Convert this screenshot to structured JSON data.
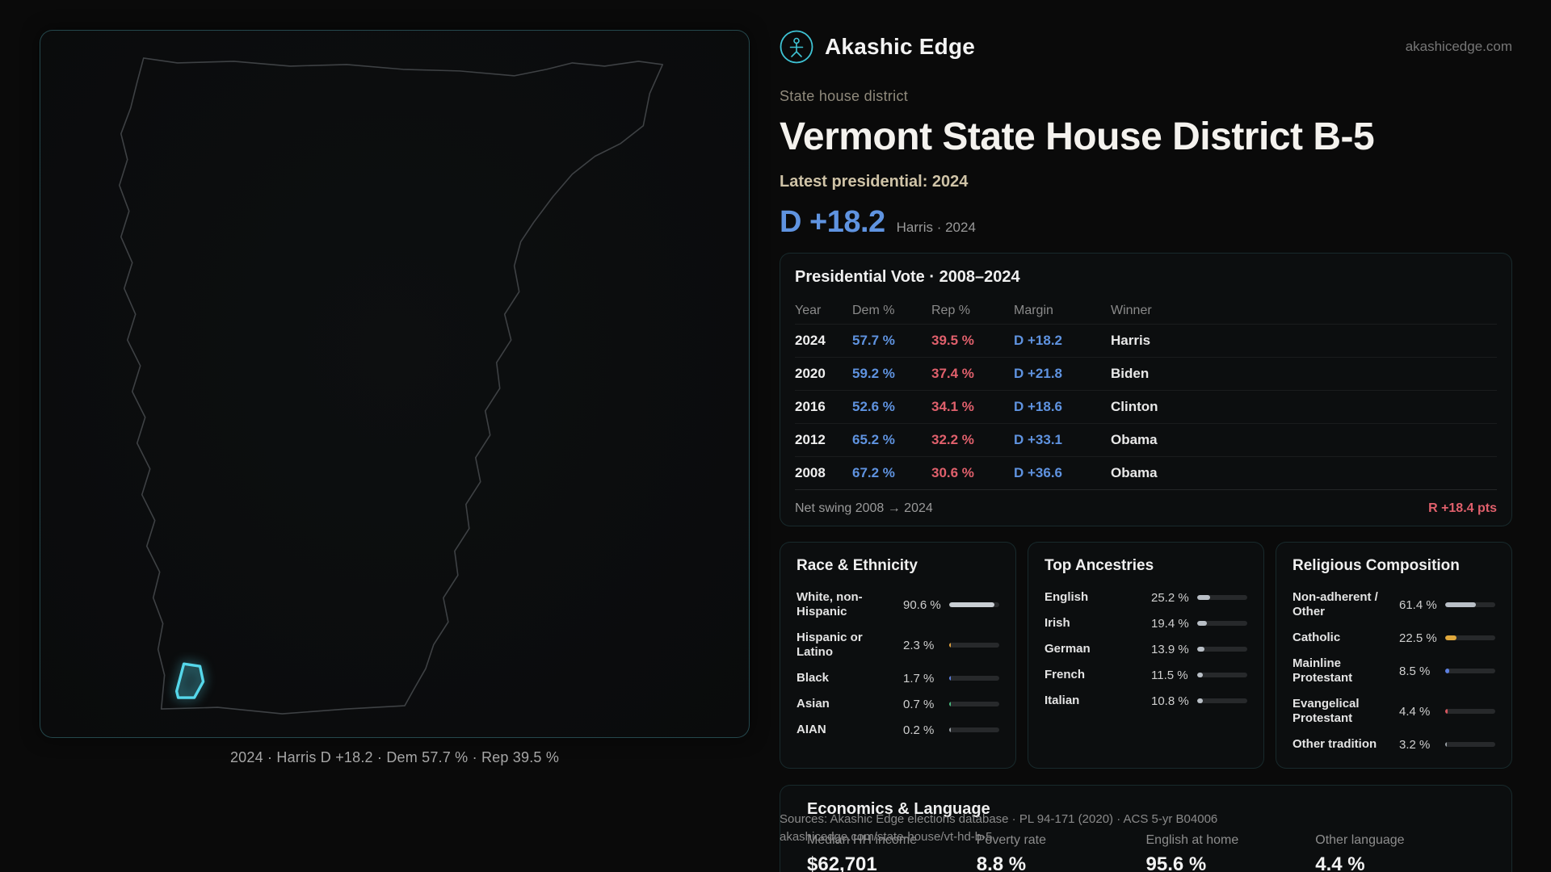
{
  "theme": {
    "dem_blue": "#5f93e0",
    "rep_red": "#e0606c",
    "accent_teal": "#55d7ea"
  },
  "brand": {
    "name": "Akashic Edge",
    "domain": "akashicedge.com"
  },
  "header": {
    "kicker": "State house district",
    "title": "Vermont State House District B-5",
    "latest_label": "Latest presidential: 2024",
    "margin_value": "D +18.2",
    "margin_context": "Harris · 2024"
  },
  "map": {
    "caption": "2024 · Harris D +18.2 · Dem 57.7 % · Rep 39.5 %"
  },
  "presidential": {
    "title": "Presidential Vote · 2008–2024",
    "columns": [
      "Year",
      "Dem %",
      "Rep %",
      "Margin",
      "Winner"
    ],
    "rows": [
      {
        "year": "2024",
        "dem": "57.7 %",
        "rep": "39.5 %",
        "margin": "D +18.2",
        "winner": "Harris"
      },
      {
        "year": "2020",
        "dem": "59.2 %",
        "rep": "37.4 %",
        "margin": "D +21.8",
        "winner": "Biden"
      },
      {
        "year": "2016",
        "dem": "52.6 %",
        "rep": "34.1 %",
        "margin": "D +18.6",
        "winner": "Clinton"
      },
      {
        "year": "2012",
        "dem": "65.2 %",
        "rep": "32.2 %",
        "margin": "D +33.1",
        "winner": "Obama"
      },
      {
        "year": "2008",
        "dem": "67.2 %",
        "rep": "30.6 %",
        "margin": "D +36.6",
        "winner": "Obama"
      }
    ],
    "net_swing_label": "Net swing 2008 → 2024",
    "net_swing_value": "R +18.4 pts"
  },
  "race": {
    "title": "Race & Ethnicity",
    "rows": [
      {
        "label": "White, non-Hispanic",
        "value": "90.6 %",
        "pct": 90.6,
        "color": "#c9ced3"
      },
      {
        "label": "Hispanic or Latino",
        "value": "2.3 %",
        "pct": 2.3,
        "color": "#e3a23c"
      },
      {
        "label": "Black",
        "value": "1.7 %",
        "pct": 1.7,
        "color": "#5c7fe0"
      },
      {
        "label": "Asian",
        "value": "0.7 %",
        "pct": 0.7,
        "color": "#46bd7e"
      },
      {
        "label": "AIAN",
        "value": "0.2 %",
        "pct": 0.2,
        "color": "#9aa0a6"
      }
    ]
  },
  "ancestries": {
    "title": "Top Ancestries",
    "rows": [
      {
        "label": "English",
        "value": "25.2 %",
        "pct": 25.2,
        "color": "#b9bfc6"
      },
      {
        "label": "Irish",
        "value": "19.4 %",
        "pct": 19.4,
        "color": "#b9bfc6"
      },
      {
        "label": "German",
        "value": "13.9 %",
        "pct": 13.9,
        "color": "#b9bfc6"
      },
      {
        "label": "French",
        "value": "11.5 %",
        "pct": 11.5,
        "color": "#b9bfc6"
      },
      {
        "label": "Italian",
        "value": "10.8 %",
        "pct": 10.8,
        "color": "#b9bfc6"
      }
    ]
  },
  "religion": {
    "title": "Religious Composition",
    "rows": [
      {
        "label": "Non-adherent / Other",
        "value": "61.4 %",
        "pct": 61.4,
        "color": "#b9bfc6"
      },
      {
        "label": "Catholic",
        "value": "22.5 %",
        "pct": 22.5,
        "color": "#e0a83c"
      },
      {
        "label": "Mainline Protestant",
        "value": "8.5 %",
        "pct": 8.5,
        "color": "#5c7fe0"
      },
      {
        "label": "Evangelical Protestant",
        "value": "4.4 %",
        "pct": 4.4,
        "color": "#d6565e"
      },
      {
        "label": "Other tradition",
        "value": "3.2 %",
        "pct": 3.2,
        "color": "#9aa0a6"
      }
    ]
  },
  "economics": {
    "title": "Economics & Language",
    "stats": [
      {
        "label": "Median HH income",
        "value": "$62,701"
      },
      {
        "label": "Poverty rate",
        "value": "8.8 %"
      },
      {
        "label": "English at home",
        "value": "95.6 %"
      },
      {
        "label": "Other language",
        "value": "4.4 %"
      }
    ]
  },
  "sources": {
    "line1": "Sources: Akashic Edge elections database · PL 94-171 (2020) · ACS 5-yr B04006",
    "line2": "akashicedge.com/state-house/vt-hd-b-5"
  }
}
